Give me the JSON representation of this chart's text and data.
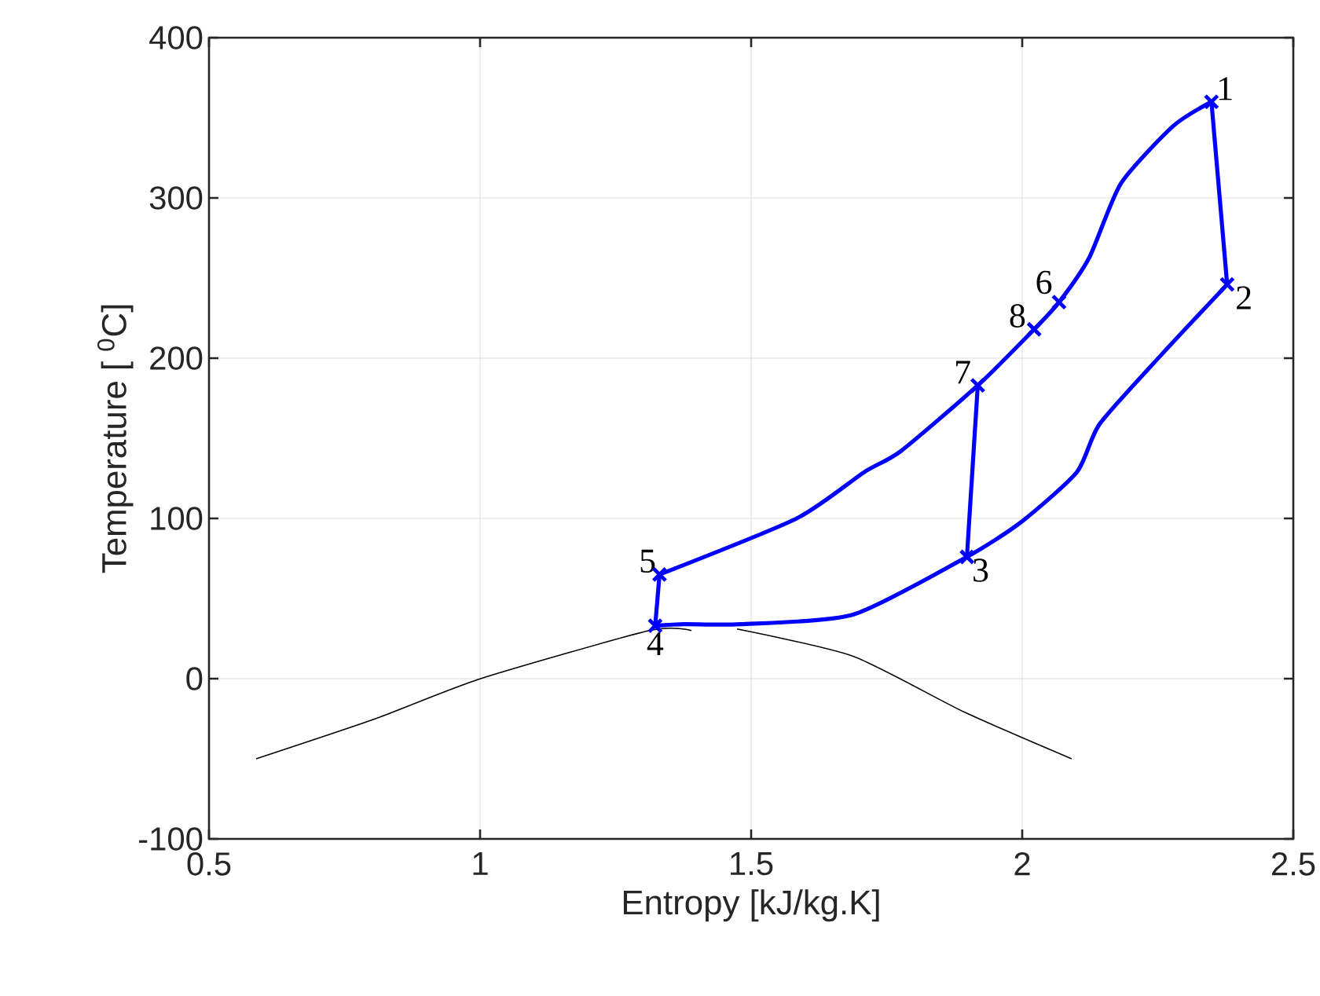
{
  "chart_data": {
    "type": "line",
    "xlabel": "Entropy [kJ/kg.K]",
    "ylabel": "Temperature [ $^{0}$C]",
    "xlim": [
      0.5,
      2.5
    ],
    "xticks": [
      0.5,
      1,
      1.5,
      2,
      2.5
    ],
    "ylim": [
      -100,
      400
    ],
    "yticks": [
      -100,
      0,
      100,
      200,
      300,
      400
    ],
    "grid": true,
    "series": [
      {
        "color": "#000000",
        "marker": "none",
        "x": [
          0.587,
          0.807,
          1.001,
          1.312,
          1.39,
          null,
          1.474,
          1.688,
          1.894,
          2.091
        ],
        "values": [
          -50,
          -25,
          0,
          30,
          30,
          null,
          31,
          14,
          -21,
          -50
        ]
      },
      {
        "color": "#0000ff",
        "marker": "none",
        "x": [
          2.349,
          2.378
        ],
        "values": [
          360,
          246
        ]
      },
      {
        "color": "#0000ff",
        "marker": "none",
        "x": [
          2.378,
          2.259,
          2.143,
          2.101,
          1.999,
          1.898,
          1.688,
          1.48,
          1.377,
          1.323
        ],
        "values": [
          246,
          203,
          159,
          129,
          98,
          76,
          40,
          34,
          34,
          33
        ]
      },
      {
        "color": "#0000ff",
        "marker": "none",
        "x": [
          1.323,
          1.331
        ],
        "values": [
          33,
          65
        ]
      },
      {
        "color": "#0000ff",
        "marker": "none",
        "x": [
          1.331,
          1.584,
          1.709,
          1.776,
          1.918,
          2.022,
          2.068,
          2.124,
          2.182,
          2.279,
          2.349
        ],
        "values": [
          65,
          100,
          129,
          142,
          183,
          218,
          235,
          263,
          309,
          345,
          360
        ]
      },
      {
        "color": "#0000ff",
        "marker": "none",
        "x": [
          1.918,
          1.898
        ],
        "values": [
          183,
          76
        ]
      },
      {
        "type": "scatter",
        "color": "#0000ff",
        "marker": "cross",
        "x": [
          2.349,
          2.378,
          1.898,
          1.323,
          1.331,
          2.068,
          1.918,
          2.022
        ],
        "values": [
          360,
          246,
          76,
          33,
          65,
          235,
          183,
          218
        ]
      }
    ],
    "annotations": [
      {
        "text": "1",
        "x": 2.349,
        "y": 360
      },
      {
        "text": "2",
        "x": 2.378,
        "y": 246
      },
      {
        "text": "3",
        "x": 1.898,
        "y": 76
      },
      {
        "text": "4",
        "x": 1.323,
        "y": 33
      },
      {
        "text": "5",
        "x": 1.331,
        "y": 65
      },
      {
        "text": "6",
        "x": 2.068,
        "y": 235
      },
      {
        "text": "7",
        "x": 1.918,
        "y": 183
      },
      {
        "text": "8",
        "x": 2.022,
        "y": 218
      }
    ]
  }
}
